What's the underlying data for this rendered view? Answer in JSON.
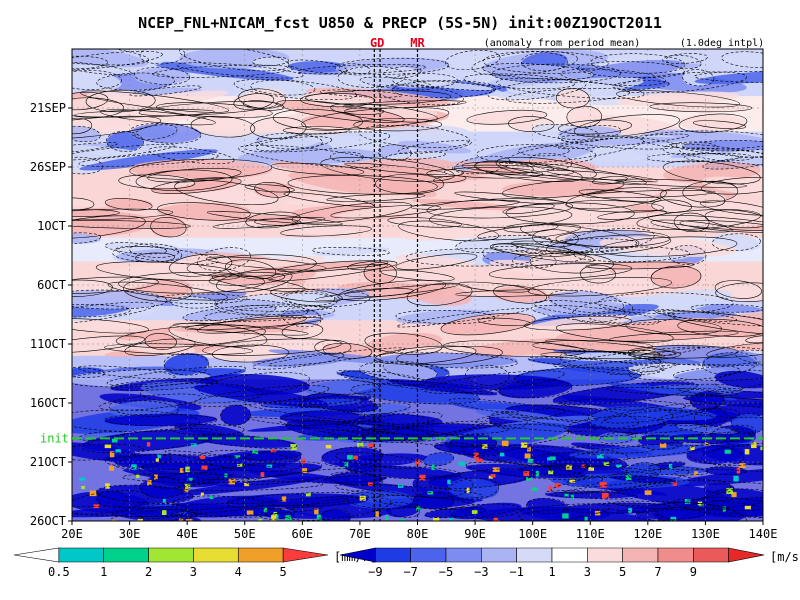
{
  "chart_data": {
    "type": "heatmap",
    "title": "NCEP_FNL+NICAM_fcst U850 & PRECP (5S-5N) init:00Z19OCT2011",
    "subtitle_left": "(anomaly from period mean)",
    "subtitle_right": "(1.0deg intpl)",
    "x_ticks": [
      "20E",
      "30E",
      "40E",
      "50E",
      "60E",
      "70E",
      "80E",
      "90E",
      "100E",
      "110E",
      "120E",
      "130E",
      "140E"
    ],
    "x_values": [
      20,
      30,
      40,
      50,
      60,
      70,
      80,
      90,
      100,
      110,
      120,
      130,
      140
    ],
    "xlim": [
      20,
      140
    ],
    "y_ticks": [
      "21SEP",
      "26SEP",
      "1OCT",
      "6OCT",
      "11OCT",
      "16OCT",
      "21OCT",
      "26OCT"
    ],
    "y_values": [
      "2011-09-21",
      "2011-09-26",
      "2011-10-01",
      "2011-10-06",
      "2011-10-11",
      "2011-10-16",
      "2011-10-21",
      "2011-10-26"
    ],
    "ylim": [
      "2011-09-16",
      "2011-10-26"
    ],
    "y_direction": "time increases downward",
    "init_line": {
      "label": "init",
      "date": "2011-10-19",
      "color": "#22cc22"
    },
    "region_markers": [
      {
        "label": "GD",
        "lon_west": 72.5,
        "lon_east": 73.5,
        "color": "#e8001c"
      },
      {
        "label": "MR",
        "lon": 80,
        "color": "#e8001c"
      }
    ],
    "u850_bands": [
      {
        "from": "2011-09-16",
        "to": "2011-09-20",
        "sign": "negative",
        "anomaly": -2
      },
      {
        "from": "2011-09-20",
        "to": "2011-09-23",
        "sign": "positive",
        "anomaly": 2
      },
      {
        "from": "2011-09-23",
        "to": "2011-09-26",
        "sign": "negative",
        "anomaly": -2
      },
      {
        "from": "2011-09-26",
        "to": "2011-10-02",
        "sign": "positive",
        "anomaly": 3
      },
      {
        "from": "2011-10-02",
        "to": "2011-10-04",
        "sign": "negative",
        "anomaly": -1
      },
      {
        "from": "2011-10-04",
        "to": "2011-10-07",
        "sign": "positive",
        "anomaly": 3
      },
      {
        "from": "2011-10-07",
        "to": "2011-10-09",
        "sign": "negative",
        "anomaly": -2
      },
      {
        "from": "2011-10-09",
        "to": "2011-10-12",
        "sign": "positive",
        "anomaly": 3
      },
      {
        "from": "2011-10-12",
        "to": "2011-10-14",
        "sign": "negative",
        "anomaly": -3
      },
      {
        "from": "2011-10-14",
        "to": "2011-10-19",
        "sign": "negative",
        "anomaly": -6
      },
      {
        "from": "2011-10-19",
        "to": "2011-10-26",
        "sign": "mixed",
        "anomaly": -7
      }
    ],
    "legend_precip": {
      "unit": "[mm/h]",
      "labels": [
        "0.5",
        "1",
        "2",
        "3",
        "4",
        "5"
      ],
      "colors": [
        "#ffffff",
        "#00c8c8",
        "#00d28c",
        "#a0e632",
        "#e6dc32",
        "#f0a028",
        "#fa3c3c"
      ]
    },
    "legend_u850": {
      "unit": "[m/s]",
      "labels": [
        "−9",
        "−7",
        "−5",
        "−3",
        "−1",
        "1",
        "3",
        "5",
        "7",
        "9"
      ],
      "colors": [
        "#0000c8",
        "#1e3ce6",
        "#4b64eb",
        "#7d8cf0",
        "#aab4f5",
        "#d4daf8",
        "#ffffff",
        "#fadcdc",
        "#f5b4b4",
        "#f08c8c",
        "#eb5a5a",
        "#e62828"
      ]
    },
    "colors": {
      "positive_1": "#fadcdc",
      "positive_2": "#f5b4b4",
      "positive_3": "#f08c8c",
      "negative_1": "#d4daf8",
      "negative_2": "#aab4f5",
      "negative_3": "#7d8cf0",
      "negative_4": "#4b64eb",
      "negative_5": "#1e3ce6",
      "negative_6": "#0000c8"
    }
  }
}
